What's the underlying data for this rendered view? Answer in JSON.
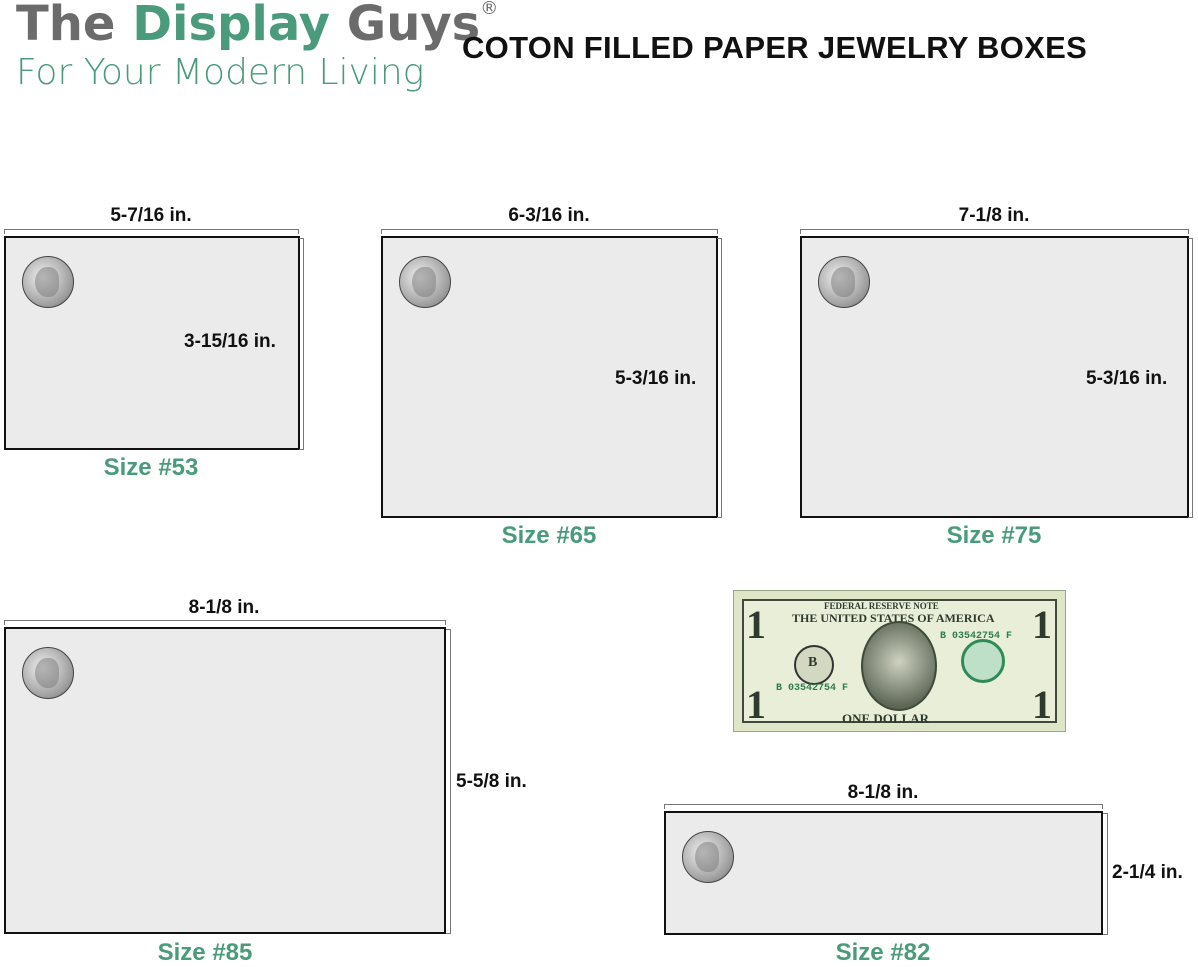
{
  "logo": {
    "word1": "The",
    "word2": "Display",
    "word3": "Guys",
    "registered": "®",
    "tagline": "For Your Modern Living"
  },
  "title": "COTON FILLED PAPER JEWELRY BOXES",
  "colors": {
    "brand_green": "#4a9a7c",
    "brand_gray": "#6b6b6b"
  },
  "boxes": [
    {
      "size": "Size #53",
      "width": "5-7/16 in.",
      "height": "3-15/16 in."
    },
    {
      "size": "Size #65",
      "width": "6-3/16 in.",
      "height": "5-3/16 in."
    },
    {
      "size": "Size #75",
      "width": "7-1/8 in.",
      "height": "5-3/16 in."
    },
    {
      "size": "Size #85",
      "width": "8-1/8 in.",
      "height": "5-5/8 in."
    },
    {
      "size": "Size #82",
      "width": "8-1/8 in.",
      "height": "2-1/4 in."
    }
  ],
  "bill": {
    "header": "FEDERAL RESERVE NOTE",
    "country": "THE UNITED STATES OF AMERICA",
    "denomination": "ONE DOLLAR",
    "serial": "B 03542754 F",
    "numeral": "1",
    "letter": "B"
  }
}
